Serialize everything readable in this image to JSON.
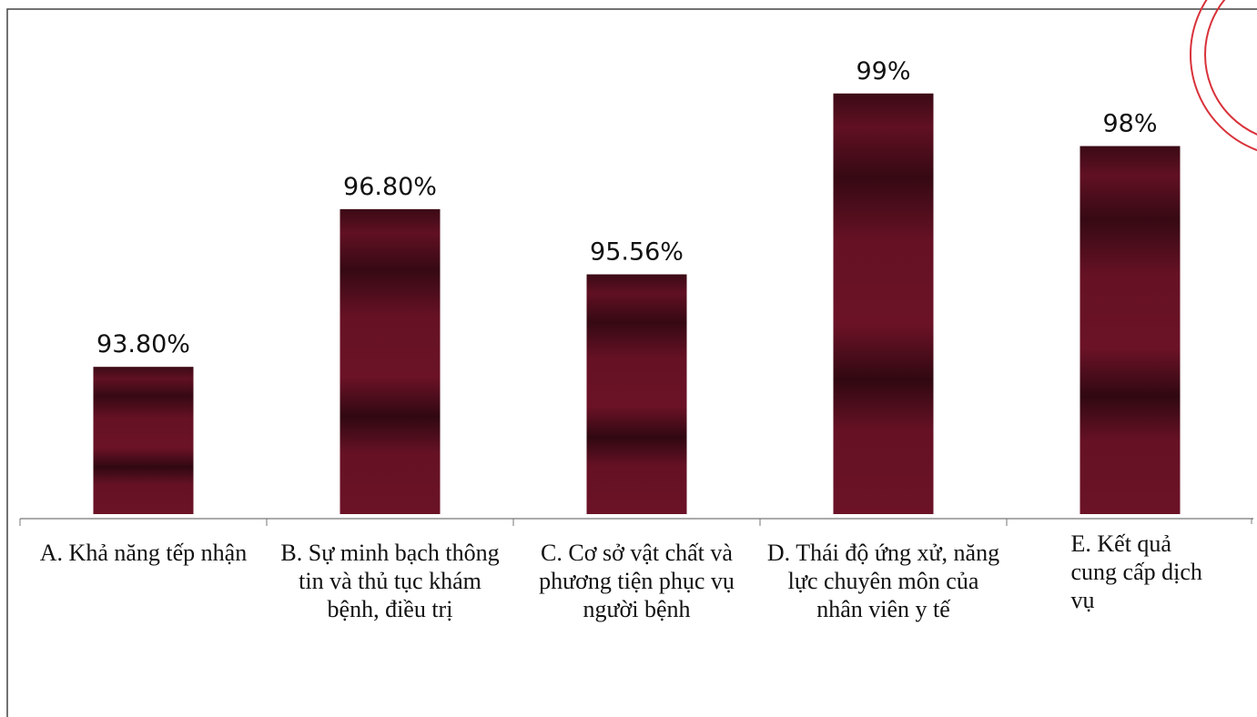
{
  "chart_data": {
    "type": "bar",
    "categories": [
      "A. Khả năng tếp nhận",
      "B. Sự minh bạch thông tin và thủ tục khám bệnh, điều trị",
      "C. Cơ sở vật chất và phương tiện phục vụ người bệnh",
      "D. Thái độ ứng xử, năng lực chuyên môn của nhân viên y tế",
      "E. Kết quả cung cấp dịch vụ"
    ],
    "values": [
      93.8,
      96.8,
      95.56,
      99,
      98
    ],
    "value_labels": [
      "93.80%",
      "96.80%",
      "95.56%",
      "99%",
      "98%"
    ],
    "color": "#6b1226",
    "ylim": [
      91,
      100
    ]
  }
}
